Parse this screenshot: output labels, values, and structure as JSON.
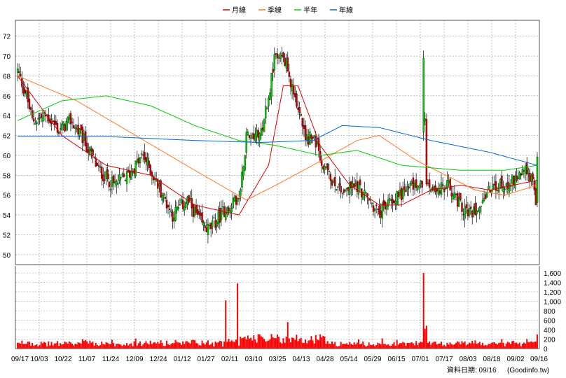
{
  "chart_data": [
    {
      "type": "candlestick",
      "legend": [
        {
          "name": "月線",
          "color": "#dd0000"
        },
        {
          "name": "季線",
          "color": "#ff7722"
        },
        {
          "name": "半年",
          "color": "#00cc00"
        },
        {
          "name": "年線",
          "color": "#0066dd"
        }
      ],
      "y_ticks": [
        "72",
        "70",
        "68",
        "66",
        "64",
        "62",
        "60",
        "58",
        "56",
        "54",
        "52",
        "50"
      ],
      "ylim": [
        49,
        73.6
      ],
      "x_tick_labels": [
        "09/17",
        "10/03",
        "10/22",
        "11/07",
        "11/24",
        "12/09",
        "12/24",
        "01/12",
        "01/27",
        "02/11",
        "03/10",
        "03/25",
        "04/13",
        "04/28",
        "05/14",
        "05/29",
        "06/15",
        "07/01",
        "07/17",
        "08/03",
        "08/18",
        "09/02",
        "09/16"
      ],
      "grid": true,
      "up_color": "#00cc00",
      "down_color": "#cc0000",
      "moving_averages_color_keys": [
        "月線",
        "季線",
        "半年",
        "年線"
      ],
      "price_anchor_series": {
        "note_source": "visual estimate",
        "close_keypoints": [
          [
            0,
            68.5
          ],
          [
            6,
            66
          ],
          [
            10,
            63.5
          ],
          [
            20,
            64
          ],
          [
            28,
            62.5
          ],
          [
            36,
            63.5
          ],
          [
            45,
            61.5
          ],
          [
            55,
            58.5
          ],
          [
            65,
            57
          ],
          [
            75,
            58
          ],
          [
            85,
            60
          ],
          [
            95,
            57
          ],
          [
            105,
            54
          ],
          [
            115,
            55.5
          ],
          [
            125,
            53
          ],
          [
            130,
            52.5
          ],
          [
            140,
            54.5
          ],
          [
            150,
            55.5
          ],
          [
            155,
            62
          ],
          [
            165,
            62.5
          ],
          [
            170,
            66
          ],
          [
            175,
            70.5
          ],
          [
            182,
            69
          ],
          [
            190,
            65
          ],
          [
            195,
            61.5
          ],
          [
            200,
            62
          ],
          [
            210,
            58
          ],
          [
            220,
            56.5
          ],
          [
            230,
            57
          ],
          [
            238,
            55.5
          ],
          [
            245,
            54
          ],
          [
            252,
            55.5
          ],
          [
            258,
            56
          ],
          [
            268,
            57
          ],
          [
            278,
            57
          ],
          [
            285,
            56.5
          ],
          [
            292,
            57
          ],
          [
            300,
            55
          ],
          [
            306,
            54
          ],
          [
            312,
            55
          ],
          [
            320,
            56.5
          ],
          [
            328,
            57
          ],
          [
            335,
            57.5
          ],
          [
            342,
            58.5
          ],
          [
            348,
            58
          ],
          [
            351,
            55
          ],
          [
            352,
            59.5
          ]
        ]
      },
      "ma_month": [
        [
          0,
          68
        ],
        [
          30,
          62
        ],
        [
          60,
          59
        ],
        [
          90,
          58
        ],
        [
          120,
          55
        ],
        [
          150,
          54
        ],
        [
          170,
          59
        ],
        [
          180,
          67
        ],
        [
          190,
          67
        ],
        [
          205,
          61
        ],
        [
          225,
          57
        ],
        [
          245,
          55
        ],
        [
          260,
          55
        ],
        [
          280,
          56.5
        ],
        [
          300,
          57
        ],
        [
          320,
          56.5
        ],
        [
          352,
          57.5
        ]
      ],
      "ma_quarter": [
        [
          0,
          68
        ],
        [
          40,
          65.5
        ],
        [
          80,
          62
        ],
        [
          120,
          58.5
        ],
        [
          155,
          55.5
        ],
        [
          175,
          57
        ],
        [
          200,
          59
        ],
        [
          230,
          61.5
        ],
        [
          245,
          62
        ],
        [
          270,
          59.5
        ],
        [
          290,
          58
        ],
        [
          310,
          56.5
        ],
        [
          330,
          56
        ],
        [
          352,
          57
        ]
      ],
      "ma_half": [
        [
          0,
          63.5
        ],
        [
          30,
          65.5
        ],
        [
          60,
          66
        ],
        [
          90,
          65
        ],
        [
          120,
          63
        ],
        [
          150,
          61.5
        ],
        [
          175,
          61
        ],
        [
          205,
          60
        ],
        [
          230,
          60.5
        ],
        [
          260,
          59
        ],
        [
          300,
          58.5
        ],
        [
          330,
          58.5
        ],
        [
          352,
          59
        ]
      ],
      "ma_year": [
        [
          0,
          61.9
        ],
        [
          60,
          61.9
        ],
        [
          120,
          61.5
        ],
        [
          165,
          61.3
        ],
        [
          200,
          61.5
        ],
        [
          220,
          63
        ],
        [
          245,
          62.8
        ],
        [
          280,
          61.5
        ],
        [
          320,
          60.3
        ],
        [
          352,
          59
        ]
      ]
    },
    {
      "type": "bar",
      "name": "volume",
      "y_ticks": [
        "1,600",
        "1,400",
        "1,200",
        "1,000",
        "800",
        "600",
        "400",
        "200",
        "0"
      ],
      "ylim": [
        0,
        1600
      ],
      "bar_color": "#ff0000",
      "spikes": [
        [
          141,
          1020
        ],
        [
          149,
          1380
        ],
        [
          183,
          560
        ],
        [
          275,
          1620
        ],
        [
          276,
          420
        ],
        [
          352,
          300
        ]
      ]
    }
  ],
  "footer": {
    "date_label": "資料日期: 09/16",
    "source_label": "(Goodinfo.tw)"
  }
}
